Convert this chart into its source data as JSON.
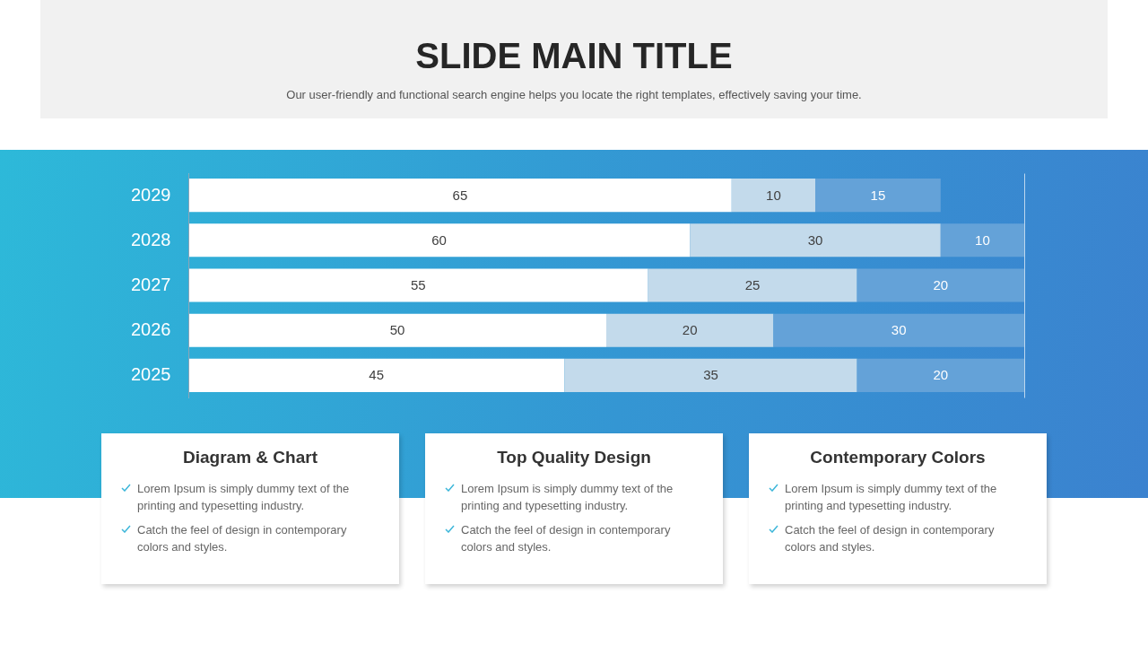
{
  "chart_data": [
    {
      "type": "bar",
      "title": "SLIDE MAIN TITLE",
      "subtitle": "Our user-friendly and functional search engine helps you locate the right templates, effectively saving your time.",
      "orientation": "horizontal",
      "stacked": true,
      "categories": [
        "2029",
        "2028",
        "2027",
        "2026",
        "2025"
      ],
      "series": [
        {
          "color": "#ffffff",
          "values": [
            65,
            60,
            55,
            50,
            45
          ]
        },
        {
          "color": "#c3daeb",
          "values": [
            10,
            30,
            25,
            20,
            35
          ]
        },
        {
          "color": "#64a2d8",
          "values": [
            15,
            10,
            20,
            30,
            20
          ]
        }
      ],
      "xlim": [
        0,
        100
      ],
      "xticks": [
        {
          "value": 0,
          "label": null
        },
        {
          "value": 100,
          "label": null
        }
      ],
      "grid": "x",
      "tick_labels": "y",
      "data_labels": true
    },
    {
      "type": "other",
      "title": "Diagram & Chart",
      "annotations": [
        "Lorem Ipsum is simply dummy text of the printing and typesetting industry.",
        "Catch the feel of design in contemporary colors and styles."
      ]
    },
    {
      "type": "other",
      "title": "Top Quality Design",
      "annotations": [
        "Lorem Ipsum is simply dummy text of the printing and typesetting industry.",
        "Catch the feel of design in contemporary colors and styles."
      ]
    },
    {
      "type": "other",
      "title": "Contemporary Colors",
      "annotations": [
        "Lorem Ipsum is simply dummy text of the printing and typesetting industry.",
        "Catch the feel of design in contemporary colors and styles."
      ]
    }
  ]
}
